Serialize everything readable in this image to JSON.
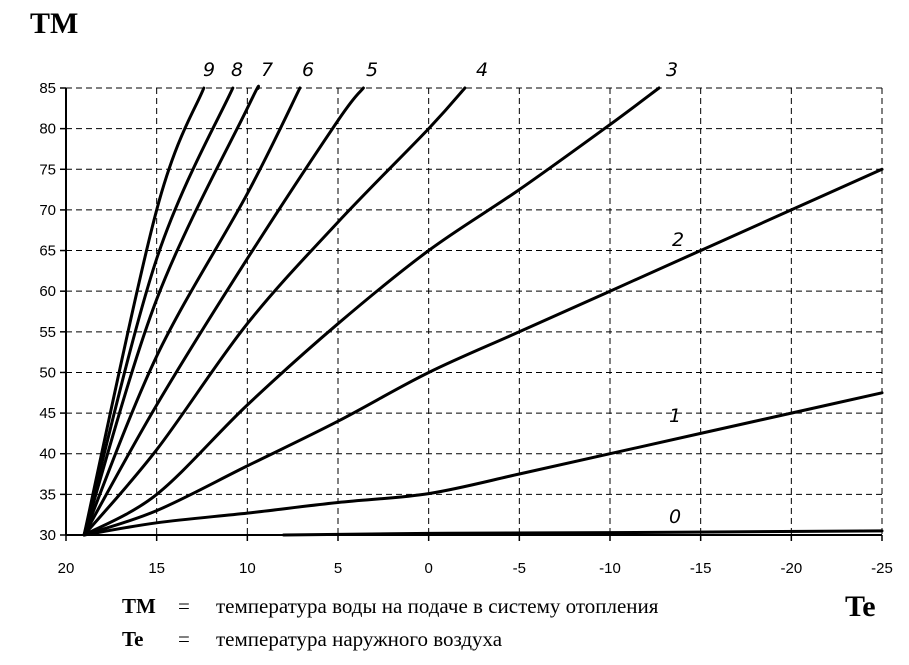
{
  "chart_data": {
    "type": "line",
    "ylabel": "TM",
    "xlabel": "Te",
    "xlim": [
      20,
      -25
    ],
    "ylim": [
      30,
      85
    ],
    "x_ticks": [
      "20",
      "15",
      "10",
      "5",
      "0",
      "-5",
      "-10",
      "-15",
      "-20",
      "-25"
    ],
    "y_ticks": [
      "30",
      "35",
      "40",
      "45",
      "50",
      "55",
      "60",
      "65",
      "70",
      "75",
      "80",
      "85"
    ],
    "grid": true,
    "series": [
      {
        "name": "0",
        "x": [
          8,
          0,
          -10,
          -25
        ],
        "y": [
          30,
          30.2,
          30.3,
          30.5
        ]
      },
      {
        "name": "1",
        "x": [
          19,
          15,
          10,
          5,
          0,
          -5,
          -10,
          -15,
          -20,
          -25
        ],
        "y": [
          30,
          31.5,
          32.7,
          34,
          35.1,
          37.5,
          40,
          42.5,
          45,
          47.5
        ]
      },
      {
        "name": "2",
        "x": [
          19,
          15,
          10,
          5,
          0,
          -5,
          -10,
          -15,
          -20,
          -25
        ],
        "y": [
          30,
          33,
          38.5,
          44,
          50,
          55,
          60,
          65,
          70,
          75
        ]
      },
      {
        "name": "3",
        "x": [
          19,
          15,
          10,
          5,
          0,
          -5,
          -10,
          -12.7
        ],
        "y": [
          30,
          35,
          46,
          56,
          65,
          72.5,
          80.5,
          85
        ]
      },
      {
        "name": "4",
        "x": [
          19,
          15,
          10,
          5,
          0,
          -2
        ],
        "y": [
          30,
          40.5,
          56,
          68.5,
          80,
          85
        ]
      },
      {
        "name": "5",
        "x": [
          19,
          15,
          10,
          5,
          3.6
        ],
        "y": [
          30,
          46,
          64,
          81,
          85
        ]
      },
      {
        "name": "6",
        "x": [
          19,
          15,
          10,
          7.1
        ],
        "y": [
          30,
          52,
          72,
          85
        ]
      },
      {
        "name": "7",
        "x": [
          19,
          15,
          10,
          9.4
        ],
        "y": [
          30,
          59,
          82.5,
          85
        ]
      },
      {
        "name": "8",
        "x": [
          19,
          15,
          10.8
        ],
        "y": [
          30,
          64,
          85
        ]
      },
      {
        "name": "9",
        "x": [
          19,
          15,
          12.4
        ],
        "y": [
          30,
          70,
          85
        ]
      }
    ],
    "labels_top": [
      "9",
      "8",
      "7",
      "6",
      "5",
      "4",
      "3"
    ],
    "label_2": "2",
    "label_1": "1",
    "label_0": "0"
  },
  "legend": {
    "tm_key": "TM",
    "tm_eq": "=",
    "tm_desc": "температура воды на подаче в систему отопления",
    "te_key": "Te",
    "te_eq": "=",
    "te_desc": "температура наружного воздуха"
  }
}
